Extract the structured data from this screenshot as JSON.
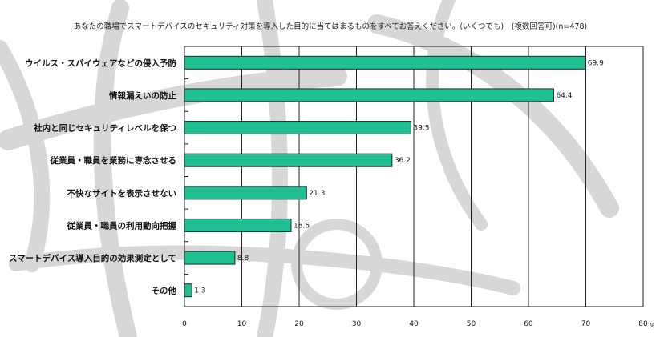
{
  "chart_data": {
    "type": "bar",
    "orientation": "horizontal",
    "title": "あなたの職場でスマートデバイスのセキュリティ対策を導入した目的に当てはまるものをすべてお答えください。(いくつでも)　(複数回答可)(n=478)",
    "categories": [
      "ウイルス・スパイウェアなどの侵入予防",
      "情報漏えいの防止",
      "社内と同じセキュリティレベルを保つ",
      "従業員・職員を業務に専念させる",
      "不快なサイトを表示させない",
      "従業員・職員の利用動向把握",
      "スマートデバイス導入目的の効果測定として",
      "その他"
    ],
    "values": [
      69.9,
      64.4,
      39.5,
      36.2,
      21.3,
      18.6,
      8.8,
      1.3
    ],
    "value_labels": [
      "69.9",
      "64.4",
      "39.5",
      "36.2",
      "21.3",
      "18.6",
      "8.8",
      "1.3"
    ],
    "xlim": [
      0,
      80
    ],
    "xticks": [
      "0",
      "10",
      "20",
      "30",
      "40",
      "50",
      "60",
      "70",
      "80"
    ],
    "x_unit": "%",
    "grid": "vertical",
    "bar_color": "#1fbf91"
  }
}
